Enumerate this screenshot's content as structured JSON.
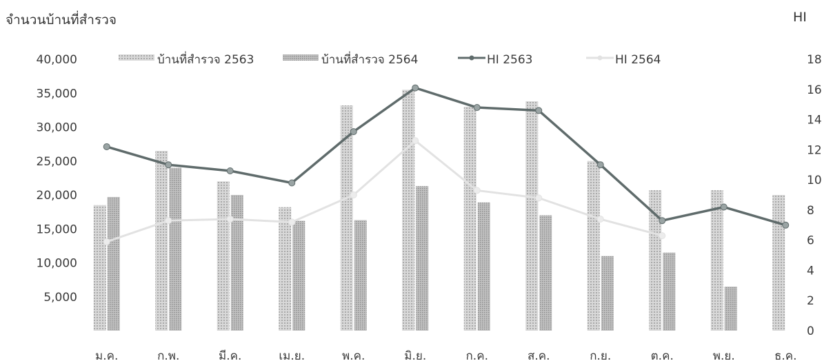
{
  "chart_data": {
    "type": "bar",
    "title": "",
    "ylabel": "จำนวนบ้านที่สำรวจ",
    "y2label": "HI",
    "categories": [
      "ม.ค.",
      "ก.พ.",
      "มี.ค.",
      "เม.ย.",
      "พ.ค.",
      "มิ.ย.",
      "ก.ค.",
      "ส.ค.",
      "ก.ย.",
      "ต.ค.",
      "พ.ย.",
      "ธ.ค."
    ],
    "ylim": [
      0,
      40000
    ],
    "y_ticks": [
      "5,000",
      "10,000",
      "15,000",
      "20,000",
      "25,000",
      "30,000",
      "35,000",
      "40,000"
    ],
    "y2lim": [
      0,
      18
    ],
    "y2_ticks": [
      "0",
      "2",
      "4",
      "6",
      "8",
      "10",
      "12",
      "14",
      "16",
      "18"
    ],
    "legend_position": "top",
    "series": [
      {
        "name": "บ้านที่สำรวจ 2563",
        "kind": "bar",
        "axis": "left",
        "color": "#cfcfcf",
        "values": [
          18500,
          26500,
          22000,
          18200,
          33200,
          35500,
          33000,
          33800,
          25000,
          20700,
          20700,
          20000
        ]
      },
      {
        "name": "บ้านที่สำรวจ 2564",
        "kind": "bar",
        "axis": "left",
        "color": "#b5b5b5",
        "values": [
          19700,
          24000,
          20000,
          16200,
          16300,
          21300,
          18900,
          17000,
          11000,
          11500,
          6500,
          null
        ]
      },
      {
        "name": "HI 2563",
        "kind": "line",
        "axis": "right",
        "color": "#5f6b6b",
        "values": [
          12.2,
          11.0,
          10.6,
          9.8,
          13.2,
          16.1,
          14.8,
          14.6,
          11.0,
          7.3,
          8.2,
          7.0
        ]
      },
      {
        "name": "HI 2564",
        "kind": "line",
        "axis": "right",
        "color": "#e2e2e2",
        "values": [
          5.9,
          7.3,
          7.4,
          7.2,
          9.0,
          12.6,
          9.3,
          8.8,
          7.4,
          6.3,
          null,
          null
        ]
      }
    ]
  }
}
